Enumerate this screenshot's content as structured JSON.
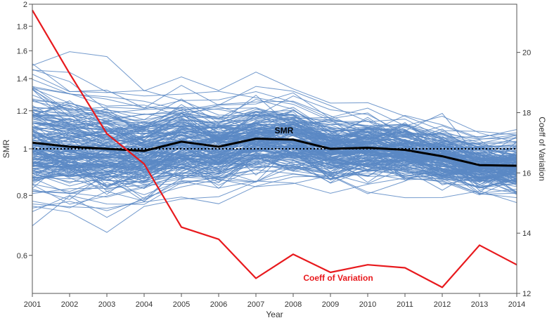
{
  "chart_data": {
    "type": "line",
    "title": "",
    "xlabel": "Year",
    "ylabel": "SMR",
    "y2label": "Coeff of Variation",
    "x": [
      2001,
      2002,
      2003,
      2004,
      2005,
      2006,
      2007,
      2008,
      2009,
      2010,
      2011,
      2012,
      2013,
      2014
    ],
    "y_scale": "log",
    "ylim": [
      0.5,
      2.0
    ],
    "y_ticks": [
      0.6,
      0.8,
      1,
      1.2,
      1.4,
      1.6,
      1.8,
      2
    ],
    "y2lim": [
      12.0,
      21.6
    ],
    "y2_ticks": [
      12,
      14,
      16,
      18,
      20
    ],
    "reference_line": {
      "y": 1,
      "style": "dotted",
      "color": "#000000"
    },
    "series": [
      {
        "name": "SMR",
        "axis": "left",
        "color": "#000000",
        "values": [
          1.03,
          1.01,
          1.0,
          0.99,
          1.035,
          1.01,
          1.05,
          1.045,
          1.0,
          1.005,
          0.995,
          0.965,
          0.925,
          0.922
        ]
      },
      {
        "name": "Coeff of Variation",
        "axis": "right",
        "color": "#e8191d",
        "values": [
          21.4,
          19.3,
          17.3,
          16.3,
          14.2,
          13.8,
          12.5,
          13.3,
          12.7,
          12.95,
          12.85,
          12.2,
          13.6,
          12.95
        ]
      }
    ],
    "annotations": [
      {
        "text": "SMR",
        "near": "SMR line, between 2003 and 2004",
        "color": "#000000"
      },
      {
        "text": "Coeff of Variation",
        "near": "below red line, around 2008",
        "color": "#e8191d"
      }
    ],
    "background_lines": {
      "description": "unit-level SMR trajectories",
      "color": "#5b88c4",
      "count": 200
    }
  }
}
